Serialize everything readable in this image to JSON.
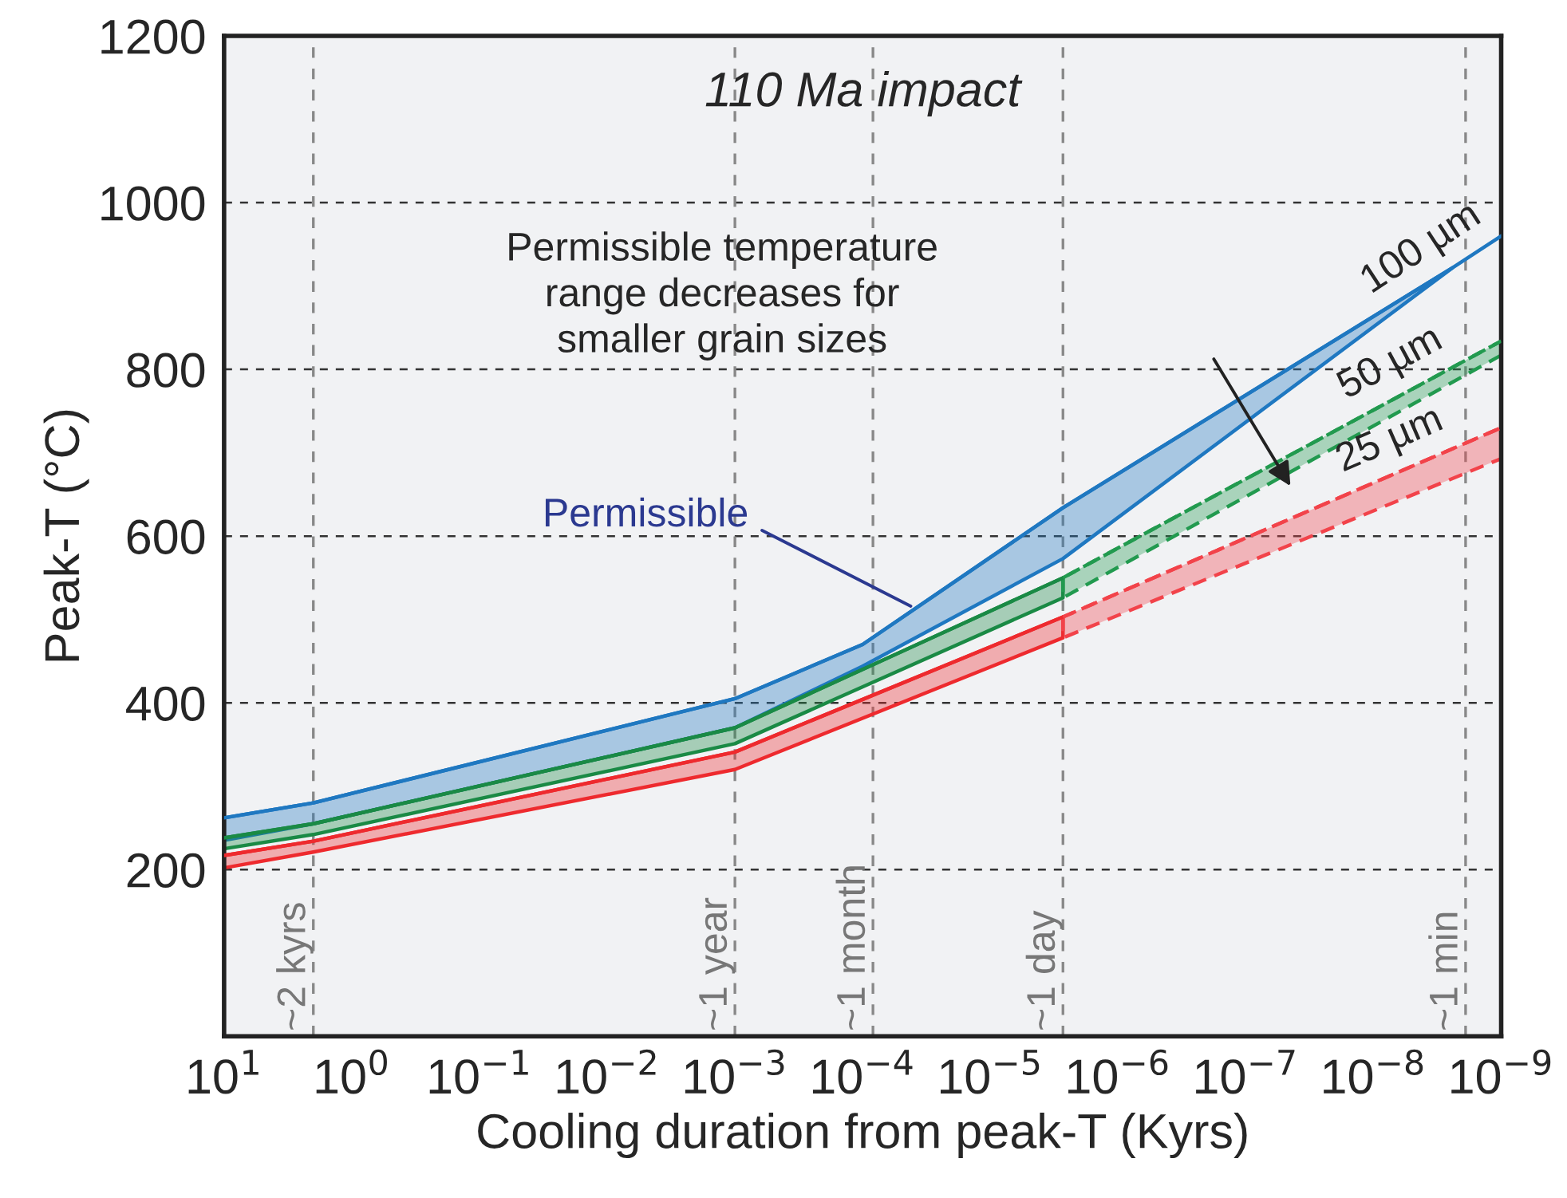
{
  "chart_data": {
    "type": "line",
    "title": "110 Ma impact",
    "xlabel": "Cooling duration from peak-T (Kyrs)",
    "ylabel": "Peak-T (°C)",
    "log": "x",
    "xlim": [
      10,
      1e-09
    ],
    "ylim": [
      0,
      1200
    ],
    "xticks": [
      {
        "value": 10,
        "label": "10$^{1}$"
      },
      {
        "value": 1,
        "label": "10$^{0}$"
      },
      {
        "value": 0.1,
        "label": "10$^{−1}$"
      },
      {
        "value": 0.01,
        "label": "10$^{−2}$"
      },
      {
        "value": 0.001,
        "label": "10$^{−3}$"
      },
      {
        "value": 0.0001,
        "label": "10$^{−4}$"
      },
      {
        "value": 1e-05,
        "label": "10$^{−5}$"
      },
      {
        "value": 1e-06,
        "label": "10$^{−6}$"
      },
      {
        "value": 1e-07,
        "label": "10$^{−7}$"
      },
      {
        "value": 1e-08,
        "label": "10$^{−8}$"
      },
      {
        "value": 1e-09,
        "label": "10$^{−9}$"
      }
    ],
    "yticks": [
      200,
      400,
      600,
      800,
      1000,
      1200
    ],
    "grid": "y",
    "line_style": "solid",
    "series": [
      {
        "name": "100 µm",
        "color": "#1f78c1",
        "x": [
          10,
          2,
          0.001,
          0.0001,
          2.7e-06,
          2.4e-09,
          1e-09
        ],
        "values": [
          262,
          280,
          405,
          470,
          634,
          922,
          960
        ],
        "upper": [
          262,
          280,
          405,
          470,
          634,
          922,
          null
        ],
        "lower": [
          235,
          255,
          370,
          444,
          573,
          922,
          null
        ]
      },
      {
        "color": "#1a8a45",
        "x": [
          10,
          2,
          0.001,
          2.7e-06
        ],
        "values": [
          238,
          255,
          370,
          550
        ],
        "upper": [
          238,
          255,
          370,
          550
        ],
        "lower": [
          225,
          242,
          351,
          526
        ]
      },
      {
        "name": "50 µm",
        "color": "#229a4f",
        "line_style": "dashed",
        "x": [
          2.7e-06,
          1e-09
        ],
        "values": [
          550,
          834
        ],
        "upper": [
          550,
          834
        ],
        "lower": [
          526,
          817
        ]
      },
      {
        "color": "#ee2a2e",
        "x": [
          10,
          2,
          0.001,
          2.7e-06
        ],
        "values": [
          217,
          234,
          341,
          503
        ],
        "upper": [
          217,
          234,
          341,
          503
        ],
        "lower": [
          202,
          221,
          320,
          478
        ]
      },
      {
        "name": "25 µm",
        "color": "#f2434a",
        "line_style": "dashed",
        "x": [
          2.7e-06,
          1e-09
        ],
        "values": [
          503,
          730
        ],
        "upper": [
          503,
          730
        ],
        "lower": [
          478,
          693
        ]
      }
    ],
    "ref_lines": [
      {
        "axis": "x",
        "value": 2,
        "label": "~2 kyrs"
      },
      {
        "axis": "x",
        "value": 0.001,
        "label": "~1 year"
      },
      {
        "axis": "x",
        "value": 8.3e-05,
        "label": "~1 month"
      },
      {
        "axis": "x",
        "value": 2.7e-06,
        "label": "~1 day"
      },
      {
        "axis": "x",
        "value": 1.9e-09,
        "label": "~1 min"
      }
    ],
    "annotations": [
      "Permissible temperature\nrange decreases for\nsmaller grain sizes",
      {
        "text": "Permissible",
        "x": 4.2e-05,
        "y": 516
      }
    ]
  }
}
